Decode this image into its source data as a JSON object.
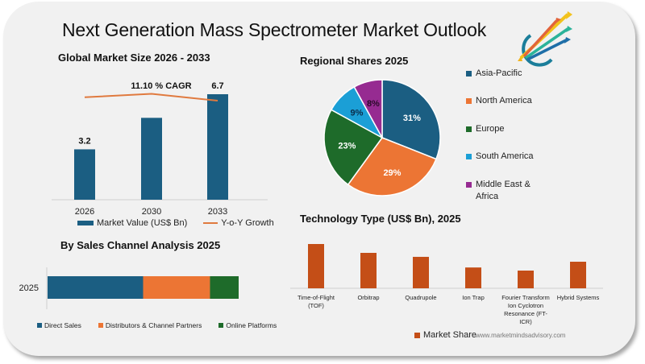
{
  "page": {
    "title": "Next Generation Mass Spectrometer Market Outlook",
    "logo_icon": "rising-arrows-logo-icon",
    "website": "www.marketmindsadvisory.com"
  },
  "colors": {
    "blue": "#1b5e82",
    "orange": "#ec7534",
    "green": "#1e6b2a",
    "light_blue": "#1b9fd6",
    "purple": "#962b91",
    "rust": "#c44e17",
    "growth_line": "#e07a3f"
  },
  "chart_data": [
    {
      "id": "market_size",
      "type": "bar",
      "title": "Global Market Size 2026 - 2033",
      "categories": [
        "2026",
        "2030",
        "2033"
      ],
      "series": [
        {
          "name": "Market Value (US$ Bn)",
          "values": [
            3.2,
            5.2,
            6.7
          ],
          "data_labels": [
            "3.2",
            "",
            "6.7"
          ]
        },
        {
          "name": "Y-o-Y Growth",
          "type": "line",
          "values": [
            0.55,
            0.6,
            0.5
          ]
        }
      ],
      "annotation": "11.10 % CAGR",
      "xlabel": "",
      "ylabel": "",
      "ylim": [
        0,
        7.5
      ],
      "grid": false,
      "legend": "bottom"
    },
    {
      "id": "regional_shares",
      "type": "pie",
      "title": "Regional Shares 2025",
      "labels": [
        "Asia-Pacific",
        "North America",
        "Europe",
        "South America",
        "Middle East & Africa"
      ],
      "values": [
        31,
        29,
        23,
        9,
        8
      ],
      "data_labels": [
        "31%",
        "29%",
        "23%",
        "9%",
        "8%"
      ],
      "legend": "right"
    },
    {
      "id": "sales_channel",
      "type": "bar",
      "orientation": "horizontal-stacked",
      "title": "By Sales Channel Analysis 2025",
      "categories": [
        "2025"
      ],
      "series": [
        {
          "name": "Direct Sales",
          "values": [
            50
          ]
        },
        {
          "name": "Distributors & Channel Partners",
          "values": [
            35
          ]
        },
        {
          "name": "Online Platforms",
          "values": [
            15
          ]
        }
      ],
      "xlim": [
        0,
        100
      ],
      "legend": "bottom"
    },
    {
      "id": "technology_type",
      "type": "bar",
      "title": "Technology Type (US$ Bn), 2025",
      "categories": [
        "Time-of-Flight (TOF)",
        "Orbitrap",
        "Quadrupole",
        "Ion Trap",
        "Fourier Transform Ion Cyclotron Resonance (FT-ICR)",
        "Hybrid Systems"
      ],
      "series": [
        {
          "name": "Market Share",
          "values": [
            1.0,
            0.8,
            0.71,
            0.47,
            0.4,
            0.6
          ]
        }
      ],
      "ylim": [
        0,
        1.0
      ],
      "legend": "bottom"
    }
  ]
}
